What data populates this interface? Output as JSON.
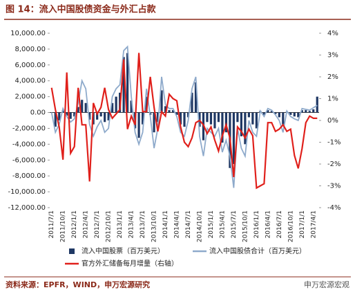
{
  "chart_data": {
    "type": "bar_line",
    "title": "图 14：流入中国股债资金与外汇占款",
    "source": "资料来源：EPFR，WIND，申万宏源研究",
    "watermark": "申万宏源宏观",
    "categories": [
      "2011/7/1",
      null,
      null,
      "2011/10/1",
      null,
      null,
      "2012/1/1",
      null,
      null,
      "2012/4/1",
      null,
      null,
      "2012/7/1",
      null,
      null,
      "2012/10/1",
      null,
      null,
      "2013/1/1",
      null,
      null,
      "2013/4/1",
      null,
      null,
      "2013/7/1",
      null,
      null,
      "2013/10/1",
      null,
      null,
      "2014/1/1",
      null,
      null,
      "2014/4/1",
      null,
      null,
      "2014/7/1",
      null,
      null,
      "2014/10/1",
      null,
      null,
      "2015/1/1",
      null,
      null,
      "2015/4/1",
      null,
      null,
      "2015/7/1",
      null,
      null,
      "2015/10/1",
      null,
      null,
      "2016/1/1",
      null,
      null,
      "2016/4/1",
      null,
      null,
      "2016/7/1",
      null,
      null,
      "2016/10/1",
      null,
      null,
      "2017/1/1",
      null,
      null,
      "2017/4/1",
      null
    ],
    "series": [
      {
        "name": "流入中国股票（百万美元）",
        "kind": "bar",
        "color": "#1f3864",
        "values": [
          0,
          -1800,
          -1000,
          300,
          -400,
          -800,
          -500,
          700,
          1600,
          1200,
          -900,
          -1500,
          -900,
          -500,
          -1200,
          -1000,
          1200,
          2000,
          2500,
          7000,
          7500,
          1500,
          -2000,
          -3200,
          -1500,
          2000,
          -300,
          -2500,
          -1200,
          2800,
          800,
          300,
          300,
          -300,
          -1500,
          -1800,
          -600,
          2500,
          3800,
          -1800,
          -3500,
          -1200,
          -1500,
          -2000,
          -1200,
          -3800,
          -2500,
          -7000,
          -6500,
          -1200,
          -3000,
          -4000,
          -600,
          -1500,
          -2000,
          200,
          -300,
          300,
          200,
          -200,
          -600,
          -1500,
          100,
          -300,
          -500,
          -600,
          300,
          300,
          200,
          400,
          2000
        ]
      },
      {
        "name": "流入中国股债合计（百万美元）",
        "kind": "line",
        "color": "#8eaacb",
        "values": [
          0,
          -2500,
          -1500,
          500,
          -500,
          -1200,
          -800,
          1200,
          4000,
          3000,
          -1500,
          -3000,
          -1800,
          -1000,
          -2500,
          -2000,
          2000,
          3000,
          3500,
          7800,
          8300,
          2000,
          -2500,
          -4000,
          -2500,
          3000,
          -500,
          -4500,
          -2000,
          4500,
          1000,
          500,
          500,
          -500,
          -2500,
          -3000,
          -1000,
          3000,
          4500,
          -3000,
          -5500,
          -2000,
          -2500,
          -3000,
          -2000,
          -5000,
          -3500,
          -5500,
          -9500,
          -2000,
          -4500,
          -5500,
          -1000,
          -2500,
          -3000,
          200,
          -500,
          500,
          300,
          -300,
          -1000,
          -2500,
          200,
          -500,
          -800,
          -1000,
          500,
          400,
          300,
          600,
          900
        ]
      },
      {
        "name": "官方外汇储备每月增量（右轴）",
        "kind": "line",
        "axis": "y2",
        "color": "#e0201b",
        "values": [
          1.5,
          0.5,
          -0.3,
          -1.8,
          2.2,
          -1.5,
          -1.2,
          1.5,
          -0.2,
          -0.2,
          -2.8,
          0.8,
          0.3,
          0.6,
          1.5,
          0.5,
          0.1,
          0.3,
          0.5,
          2.8,
          -0.4,
          0.2,
          -0.2,
          3.1,
          0.4,
          0.4,
          2.0,
          0.6,
          -0.5,
          0.4,
          0.2,
          1.2,
          1.0,
          0.9,
          -0.3,
          -1.0,
          -1.2,
          -0.8,
          -0.1,
          0.0,
          -0.2,
          -0.6,
          -0.3,
          -0.9,
          -1.4,
          -0.7,
          -0.2,
          -0.8,
          -2.6,
          -0.3,
          -0.5,
          -0.8,
          -0.4,
          -0.7,
          -3.1,
          -3.0,
          -2.9,
          -0.1,
          -0.1,
          -0.5,
          -0.4,
          -0.2,
          -0.5,
          -0.4,
          -1.6,
          -2.2,
          -1.3,
          -0.1,
          0.2,
          0.1,
          0.1
        ]
      }
    ],
    "ylim": [
      -12000,
      10000
    ],
    "yticks": [
      {
        "value": -12000,
        "label": "-12,000.00"
      },
      {
        "value": -10000,
        "label": "-10,000.00"
      },
      {
        "value": -8000,
        "label": "-8,000.00"
      },
      {
        "value": -6000,
        "label": "-6,000.00"
      },
      {
        "value": -4000,
        "label": "-4,000.00"
      },
      {
        "value": -2000,
        "label": "-2,000.00"
      },
      {
        "value": 0,
        "label": "0.00"
      },
      {
        "value": 2000,
        "label": "2,000.00"
      },
      {
        "value": 4000,
        "label": "4,000.00"
      },
      {
        "value": 6000,
        "label": "6,000.00"
      },
      {
        "value": 8000,
        "label": "8,000.00"
      },
      {
        "value": 10000,
        "label": "10,000.00"
      }
    ],
    "y2lim": [
      -4,
      4
    ],
    "y2ticks": [
      {
        "value": -4,
        "label": "-4%"
      },
      {
        "value": -3,
        "label": "-3%"
      },
      {
        "value": -2,
        "label": "-2%"
      },
      {
        "value": -1,
        "label": "-1%"
      },
      {
        "value": 0,
        "label": "0%"
      },
      {
        "value": 1,
        "label": "1%"
      },
      {
        "value": 2,
        "label": "2%"
      },
      {
        "value": 3,
        "label": "3%"
      },
      {
        "value": 4,
        "label": "4%"
      }
    ]
  }
}
